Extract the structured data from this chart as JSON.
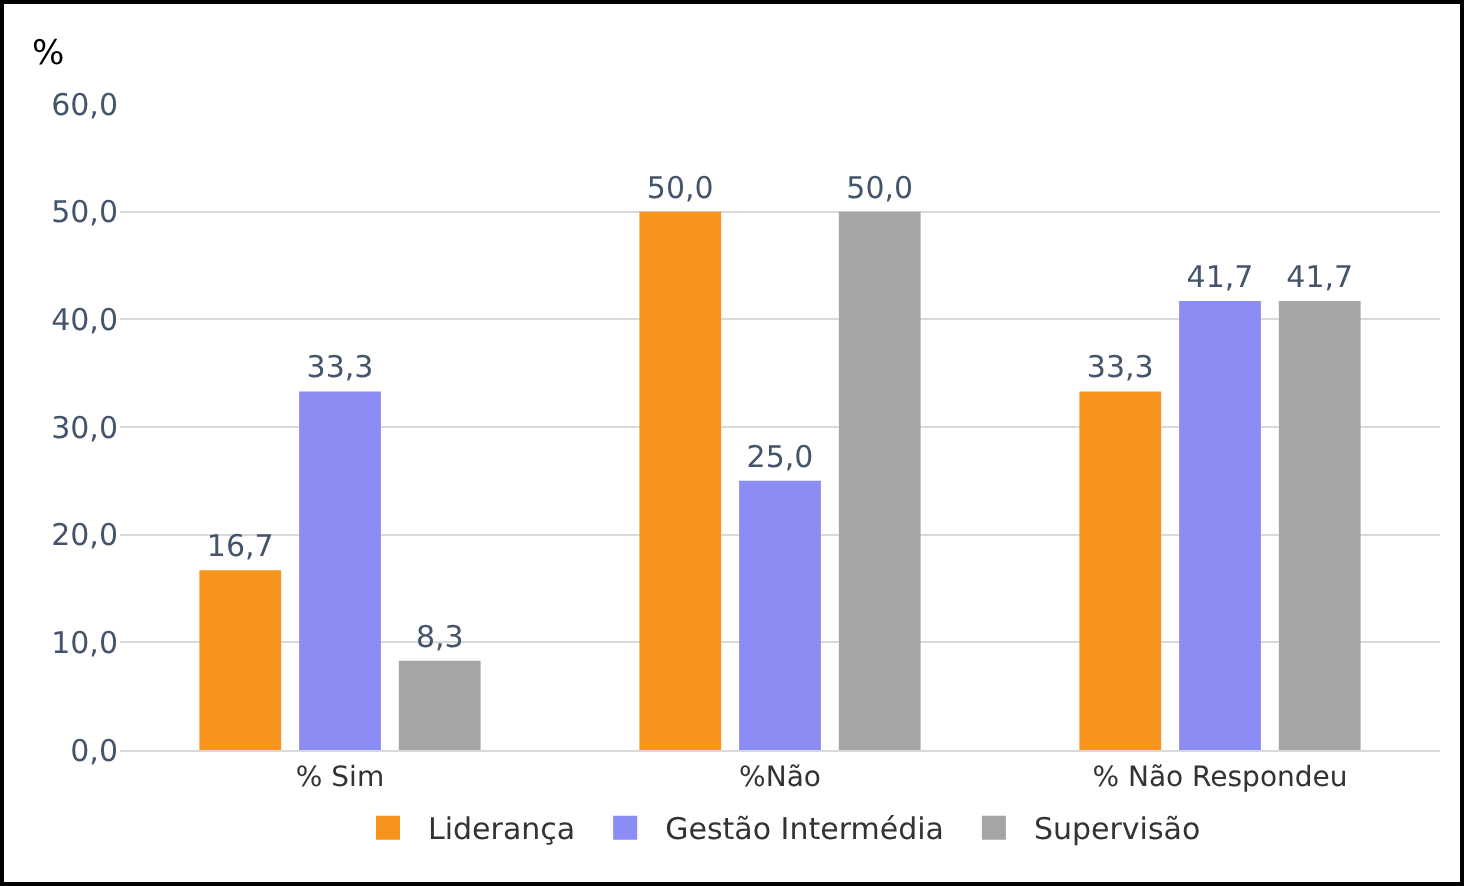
{
  "chart_data": {
    "type": "bar",
    "ylabel": "%",
    "categories": [
      "% Sim",
      "%Não",
      "% Não Respondeu"
    ],
    "series": [
      {
        "name": "Liderança",
        "color": "#f7941d",
        "values": [
          16.7,
          50.0,
          33.3
        ],
        "value_labels": [
          "16,7",
          "50,0",
          "33,3"
        ]
      },
      {
        "name": "Gestão Intermédia",
        "color": "#8c8cf5",
        "values": [
          33.3,
          25.0,
          41.7
        ],
        "value_labels": [
          "33,3",
          "25,0",
          "41,7"
        ]
      },
      {
        "name": "Supervisão",
        "color": "#a5a5a5",
        "values": [
          8.3,
          50.0,
          41.7
        ],
        "value_labels": [
          "8,3",
          "50,0",
          "41,7"
        ]
      }
    ],
    "ylim": [
      0,
      60
    ],
    "yticks": [
      {
        "value": 0,
        "label": "0,0"
      },
      {
        "value": 10,
        "label": "10,0"
      },
      {
        "value": 20,
        "label": "20,0"
      },
      {
        "value": 30,
        "label": "30,0"
      },
      {
        "value": 40,
        "label": "40,0"
      },
      {
        "value": 50,
        "label": "50,0"
      },
      {
        "value": 60,
        "label": "60,0"
      }
    ],
    "grid": "y",
    "legend": "bottom"
  }
}
